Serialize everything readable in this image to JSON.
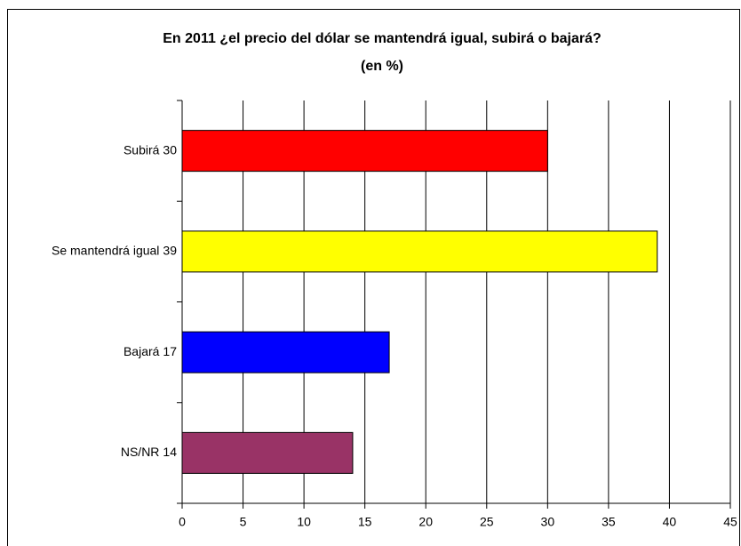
{
  "chart_data": {
    "type": "barh",
    "title": "En 2011 ¿el precio del dólar se mantendrá igual, subirá o bajará?",
    "subtitle": "(en %)",
    "categories": [
      "Subirá",
      "Se mantendrá igual",
      "Bajará",
      "NS/NR"
    ],
    "values": [
      30,
      39,
      17,
      14
    ],
    "colors": [
      "#ff0000",
      "#ffff00",
      "#0000ff",
      "#993366"
    ],
    "xlim": [
      0,
      45
    ],
    "xticks": [
      0,
      5,
      10,
      15,
      20,
      25,
      30,
      35,
      40,
      45
    ],
    "grid": true
  }
}
